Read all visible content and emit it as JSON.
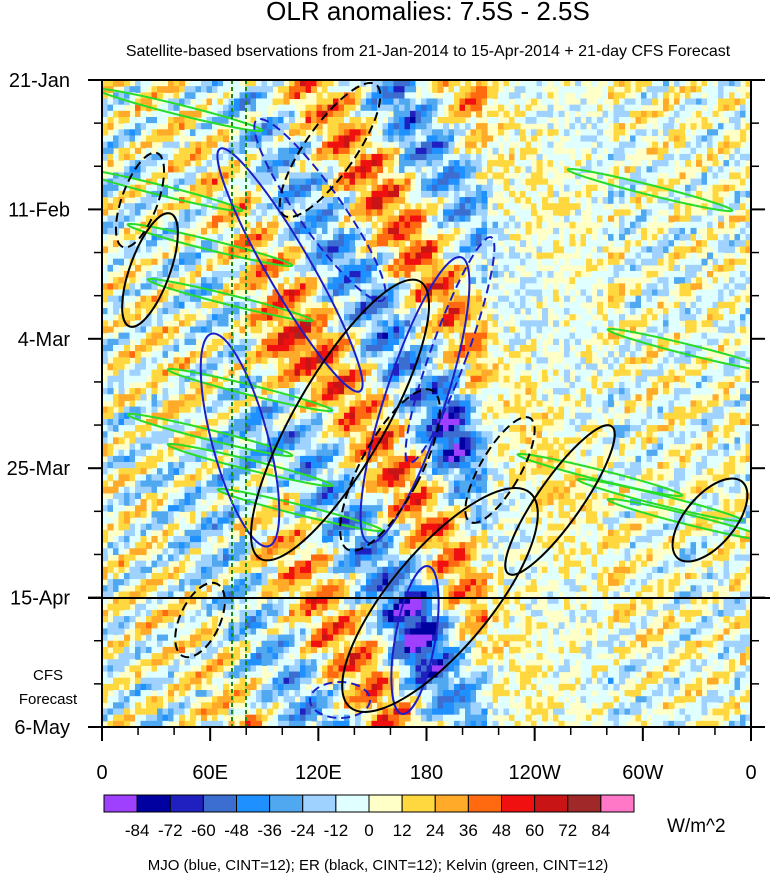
{
  "chart_data": {
    "type": "heatmap",
    "title": "OLR anomalies: 7.5S - 2.5S",
    "subtitle": "Satellite-based bservations from 21-Jan-2014 to 15-Apr-2014 + 21-day CFS Forecast",
    "x_ticks": [
      "0",
      "60E",
      "120E",
      "180",
      "120W",
      "60W",
      "0"
    ],
    "x_tick_values": [
      0,
      60,
      120,
      180,
      240,
      300,
      360
    ],
    "y_ticks": [
      "21-Jan",
      "11-Feb",
      "4-Mar",
      "25-Mar",
      "15-Apr",
      "6-May"
    ],
    "y_tick_days": [
      0,
      21,
      42,
      63,
      84,
      105
    ],
    "xlim": [
      0,
      360
    ],
    "ylim_days": [
      0,
      105
    ],
    "observation_end": "15-Apr",
    "forecast_label": [
      "CFS",
      "Forecast"
    ],
    "reference_meridians": [
      72,
      80
    ],
    "colorbar": {
      "levels": [
        -84,
        -72,
        -60,
        -48,
        -36,
        -24,
        -12,
        0,
        12,
        24,
        36,
        48,
        60,
        72,
        84
      ],
      "labels": [
        "-84",
        "-72",
        "-60",
        "-48",
        "-36",
        "-24",
        "-12",
        "0",
        "12",
        "24",
        "36",
        "48",
        "60",
        "72",
        "84"
      ],
      "colors": [
        "#a040ff",
        "#0000a0",
        "#2020c0",
        "#3c6ed2",
        "#1e90ff",
        "#50a8f0",
        "#a0d2ff",
        "#e0ffff",
        "#ffffc8",
        "#ffd840",
        "#ffaa28",
        "#ff6a10",
        "#f01010",
        "#c81414",
        "#a02828",
        "#ff78c8"
      ],
      "units": "W/m^2"
    },
    "legend_text": "MJO (blue, CINT=12); ER (black, CINT=12); Kelvin (green, CINT=12)",
    "contour_colors": {
      "MJO": "#1e1ec8",
      "ER": "#000000",
      "Kelvin": "#28dc28"
    }
  }
}
